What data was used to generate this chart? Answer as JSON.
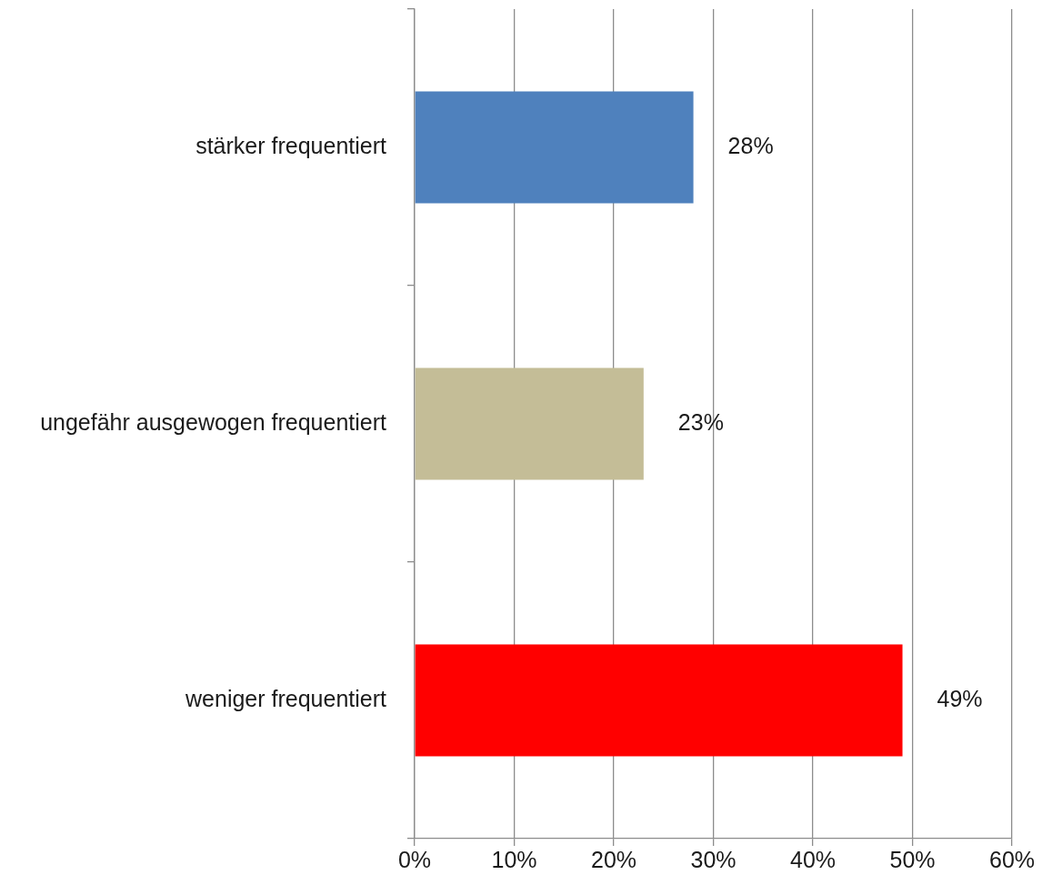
{
  "chart_data": {
    "type": "bar",
    "orientation": "horizontal",
    "categories": [
      "stärker frequentiert",
      "ungefähr ausgewogen frequentiert",
      "weniger frequentiert"
    ],
    "values": [
      28,
      23,
      49
    ],
    "colors": [
      "#4f81bd",
      "#c4bd97",
      "#ff0000"
    ],
    "value_labels": [
      "28%",
      "23%",
      "49%"
    ],
    "xlim": [
      0,
      60
    ],
    "xticks": [
      {
        "value": 0,
        "label": "0%"
      },
      {
        "value": 10,
        "label": "10%"
      },
      {
        "value": 20,
        "label": "20%"
      },
      {
        "value": 30,
        "label": "30%"
      },
      {
        "value": 40,
        "label": "40%"
      },
      {
        "value": 50,
        "label": "50%"
      },
      {
        "value": 60,
        "label": "60%"
      }
    ],
    "grid": "x"
  }
}
